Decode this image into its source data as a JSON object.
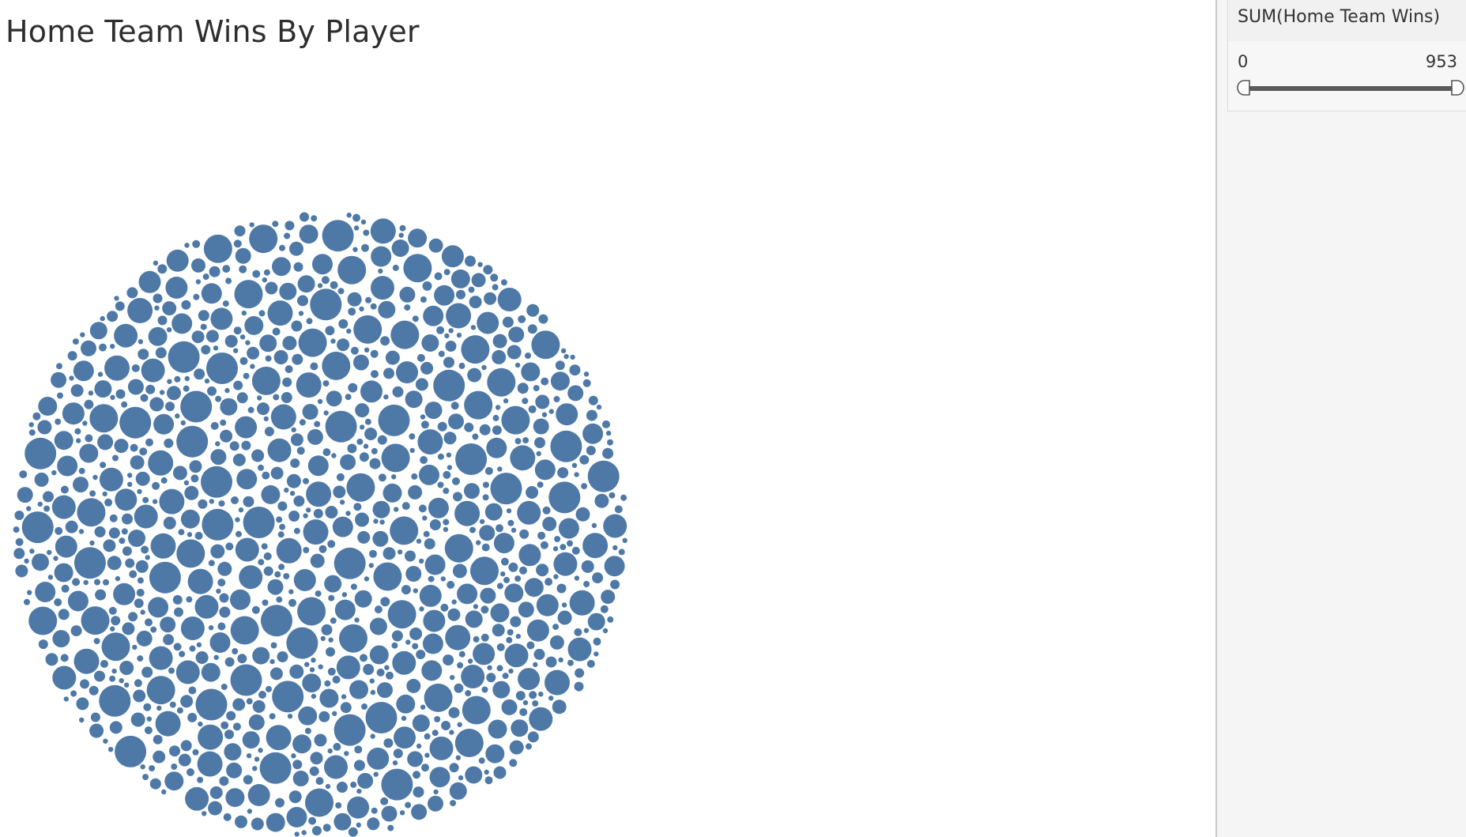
{
  "title": "Home Team Wins By Player",
  "filter": {
    "title": "SUM(Home Team Wins)",
    "min_label": "0",
    "max_label": "953",
    "range_min": 0,
    "range_max": 953,
    "selected_min": 0,
    "selected_max": 953
  },
  "colors": {
    "bubble": "#4e79a7",
    "background": "#ffffff",
    "side_pane": "#f5f5f5"
  },
  "chart_data": {
    "type": "packed-bubble",
    "title": "Home Team Wins By Player",
    "measure": "SUM(Home Team Wins)",
    "value_range": [
      0,
      953
    ],
    "mark_count": 1500,
    "color": "#4e79a7"
  }
}
